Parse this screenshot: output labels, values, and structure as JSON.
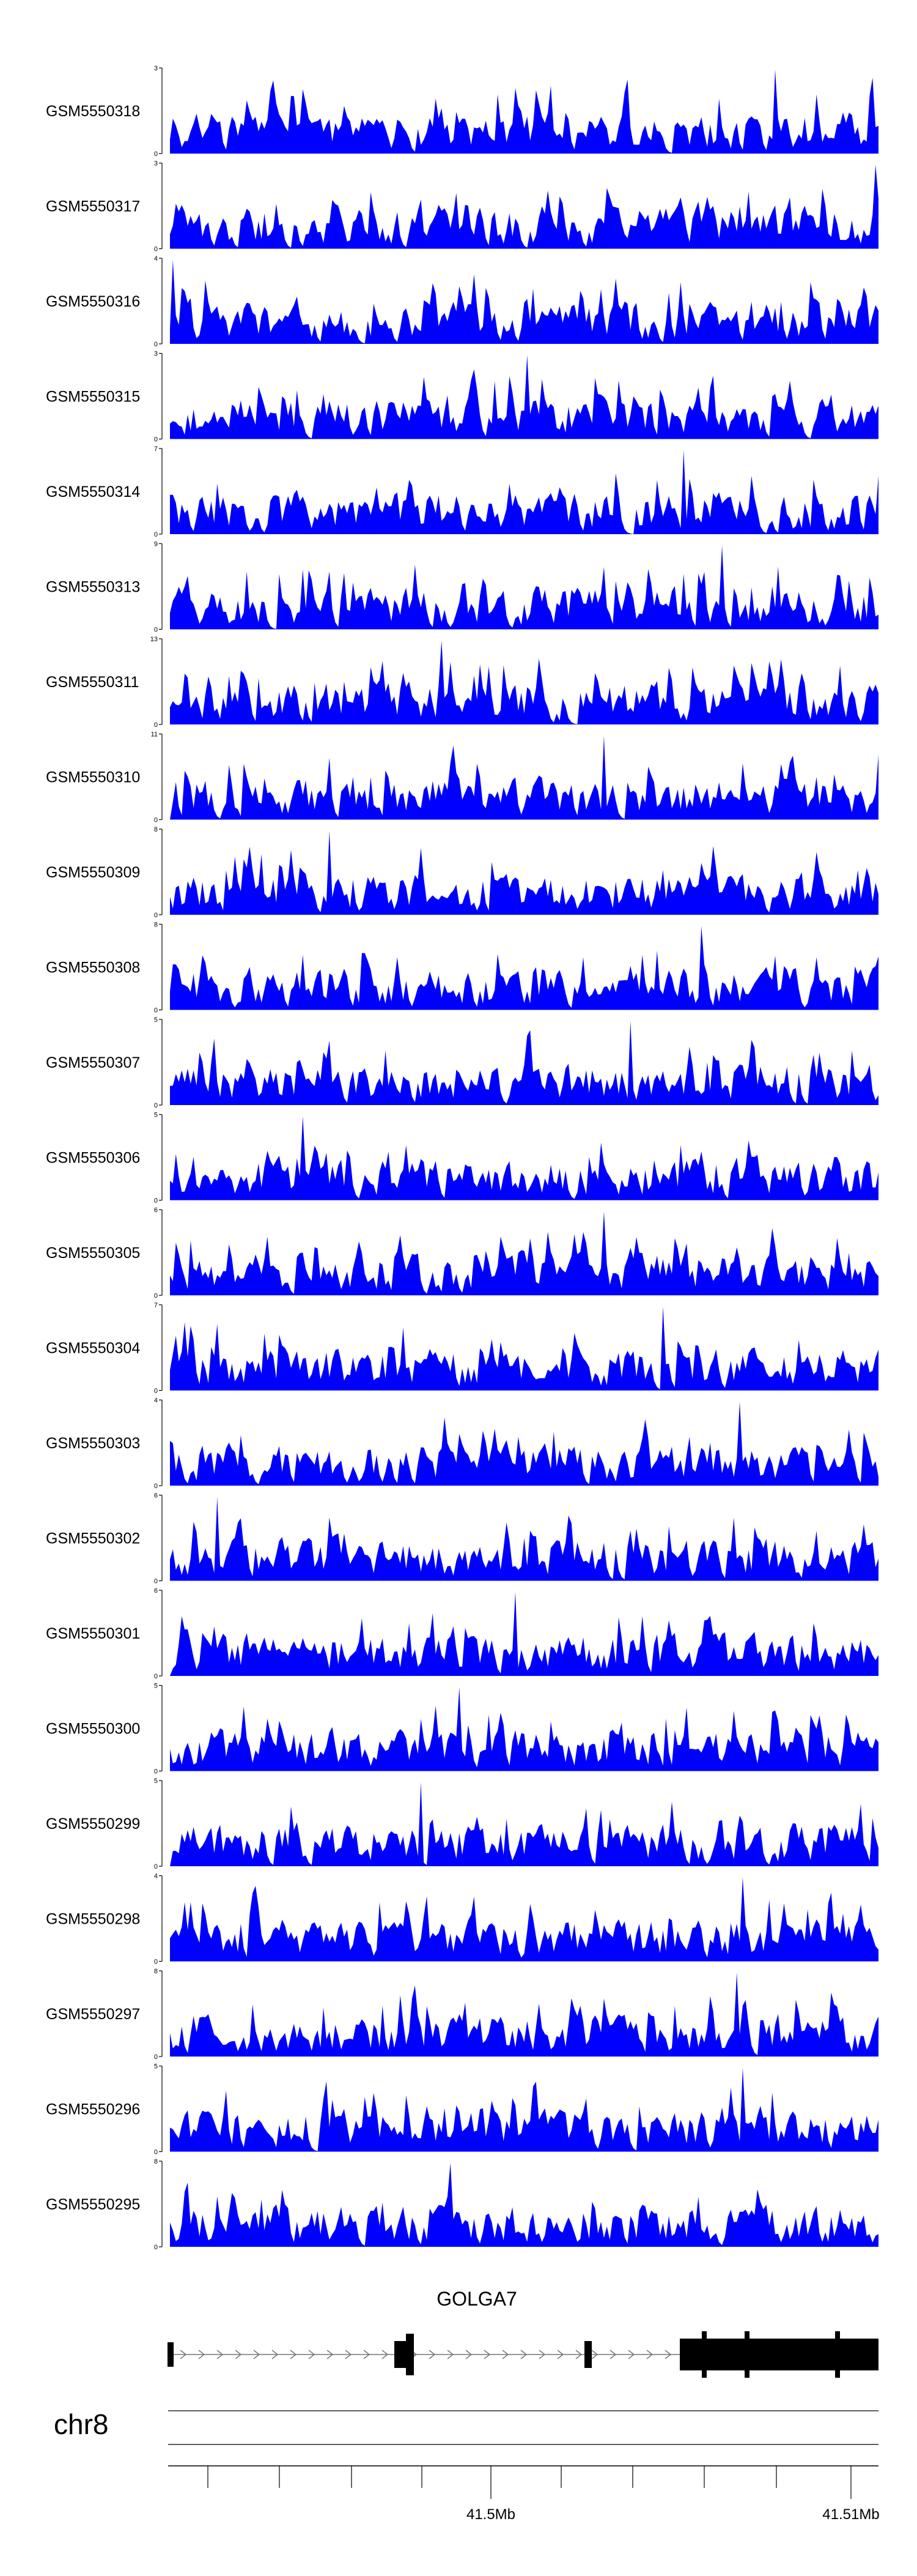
{
  "chart_data": {
    "type": "area",
    "fill_color": "#0000ff",
    "grid": false,
    "tracks": [
      {
        "name": "GSM5550318",
        "ymax": 3,
        "seed": 318
      },
      {
        "name": "GSM5550317",
        "ymax": 3,
        "seed": 317
      },
      {
        "name": "GSM5550316",
        "ymax": 4,
        "seed": 316
      },
      {
        "name": "GSM5550315",
        "ymax": 3,
        "seed": 315
      },
      {
        "name": "GSM5550314",
        "ymax": 7,
        "seed": 314
      },
      {
        "name": "GSM5550313",
        "ymax": 9,
        "seed": 313
      },
      {
        "name": "GSM5550311",
        "ymax": 13,
        "seed": 311
      },
      {
        "name": "GSM5550310",
        "ymax": 11,
        "seed": 310
      },
      {
        "name": "GSM5550309",
        "ymax": 8,
        "seed": 309
      },
      {
        "name": "GSM5550308",
        "ymax": 8,
        "seed": 308
      },
      {
        "name": "GSM5550307",
        "ymax": 5,
        "seed": 307
      },
      {
        "name": "GSM5550306",
        "ymax": 5,
        "seed": 306
      },
      {
        "name": "GSM5550305",
        "ymax": 6,
        "seed": 305
      },
      {
        "name": "GSM5550304",
        "ymax": 7,
        "seed": 304
      },
      {
        "name": "GSM5550303",
        "ymax": 4,
        "seed": 303
      },
      {
        "name": "GSM5550302",
        "ymax": 6,
        "seed": 302
      },
      {
        "name": "GSM5550301",
        "ymax": 6,
        "seed": 301
      },
      {
        "name": "GSM5550300",
        "ymax": 5,
        "seed": 300
      },
      {
        "name": "GSM5550299",
        "ymax": 5,
        "seed": 299
      },
      {
        "name": "GSM5550298",
        "ymax": 4,
        "seed": 298
      },
      {
        "name": "GSM5550297",
        "ymax": 8,
        "seed": 297
      },
      {
        "name": "GSM5550296",
        "ymax": 5,
        "seed": 296
      },
      {
        "name": "GSM5550295",
        "ymax": 8,
        "seed": 295
      }
    ],
    "gene": {
      "name": "GOLGA7",
      "strand": "+"
    },
    "chromosome": "chr8",
    "x_axis": {
      "tick_labels": [
        "41.5Mb",
        "41.51Mb"
      ]
    }
  }
}
